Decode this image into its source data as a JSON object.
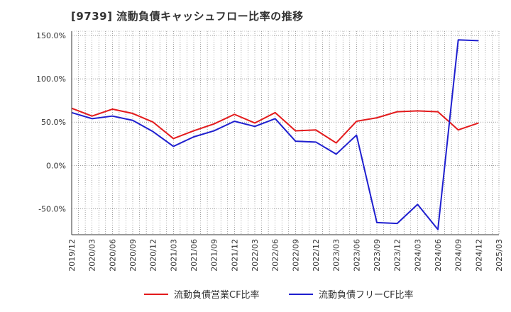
{
  "title": "[9739]  流動負債キャッシュフロー比率の推移",
  "chart_data": {
    "type": "line",
    "title": "[9739]  流動負債キャッシュフロー比率の推移",
    "x_ticks": [
      "2019/12",
      "2020/03",
      "2020/06",
      "2020/09",
      "2020/12",
      "2021/03",
      "2021/06",
      "2021/09",
      "2021/12",
      "2022/03",
      "2022/06",
      "2022/09",
      "2022/12",
      "2023/03",
      "2023/06",
      "2023/09",
      "2023/12",
      "2024/03",
      "2024/06",
      "2024/09",
      "2024/12",
      "2025/03"
    ],
    "y_ticks": [
      "150.0%",
      "100.0%",
      "50.0%",
      "0.0%",
      "-50.0%"
    ],
    "y_tick_values": [
      150,
      100,
      50,
      0,
      -50
    ],
    "ylim": [
      -80,
      155
    ],
    "grid": true,
    "legend_position": "bottom",
    "series": [
      {
        "name": "流動負債営業CF比率",
        "color": "#e31a1c",
        "x": [
          "2019/12",
          "2020/03",
          "2020/06",
          "2020/09",
          "2020/12",
          "2021/03",
          "2021/06",
          "2021/09",
          "2021/12",
          "2022/03",
          "2022/06",
          "2022/09",
          "2022/12",
          "2023/03",
          "2023/06",
          "2023/09",
          "2023/12",
          "2024/03",
          "2024/06",
          "2024/09",
          "2024/12"
        ],
        "values": [
          66,
          57,
          65,
          60,
          50,
          31,
          40,
          48,
          59,
          49,
          61,
          40,
          41,
          26,
          51,
          55,
          62,
          63,
          62,
          41,
          49
        ]
      },
      {
        "name": "流動負債フリーCF比率",
        "color": "#1f1fcf",
        "x": [
          "2019/12",
          "2020/03",
          "2020/06",
          "2020/09",
          "2020/12",
          "2021/03",
          "2021/06",
          "2021/09",
          "2021/12",
          "2022/03",
          "2022/06",
          "2022/09",
          "2022/12",
          "2023/03",
          "2023/06",
          "2023/09",
          "2023/12",
          "2024/03",
          "2024/06",
          "2024/09",
          "2024/12"
        ],
        "values": [
          61,
          54,
          57,
          52,
          39,
          22,
          33,
          40,
          51,
          45,
          54,
          28,
          27,
          13,
          35,
          -66,
          -67,
          -45,
          -74,
          145,
          144
        ]
      }
    ]
  }
}
